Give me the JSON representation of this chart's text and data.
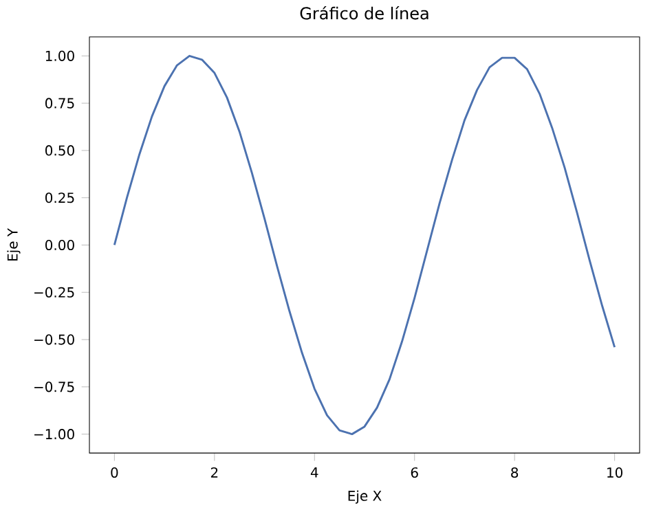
{
  "chart_data": {
    "type": "line",
    "title": "Gráfico de línea",
    "xlabel": "Eje X",
    "ylabel": "Eje Y",
    "x": [
      0,
      0.25,
      0.5,
      0.75,
      1,
      1.25,
      1.5,
      1.75,
      2,
      2.25,
      2.5,
      2.75,
      3,
      3.25,
      3.5,
      3.75,
      4,
      4.25,
      4.5,
      4.75,
      5,
      5.25,
      5.5,
      5.75,
      6,
      6.25,
      6.5,
      6.75,
      7,
      7.25,
      7.5,
      7.75,
      8,
      8.25,
      8.5,
      8.75,
      9,
      9.25,
      9.5,
      9.75,
      10
    ],
    "series": [
      {
        "color": "#4c72b0",
        "values": [
          0,
          0.25,
          0.48,
          0.68,
          0.84,
          0.95,
          1.0,
          0.98,
          0.91,
          0.78,
          0.6,
          0.38,
          0.14,
          -0.11,
          -0.35,
          -0.57,
          -0.76,
          -0.9,
          -0.98,
          -1.0,
          -0.96,
          -0.86,
          -0.71,
          -0.51,
          -0.28,
          -0.03,
          0.22,
          0.45,
          0.66,
          0.82,
          0.94,
          0.99,
          0.99,
          0.93,
          0.8,
          0.62,
          0.41,
          0.17,
          -0.08,
          -0.32,
          -0.54
        ]
      }
    ],
    "xlim": [
      -0.5,
      10.5
    ],
    "ylim": [
      -1.1,
      1.1
    ],
    "xticks": [
      0,
      2,
      4,
      6,
      8,
      10
    ],
    "yticks": [
      {
        "value": -1,
        "label": "−1.00"
      },
      {
        "value": -0.75,
        "label": "−0.75"
      },
      {
        "value": -0.5,
        "label": "−0.50"
      },
      {
        "value": -0.25,
        "label": "−0.25"
      },
      {
        "value": 0,
        "label": "0.00"
      },
      {
        "value": 0.25,
        "label": "0.25"
      },
      {
        "value": 0.5,
        "label": "0.50"
      },
      {
        "value": 0.75,
        "label": "0.75"
      },
      {
        "value": 1,
        "label": "1.00"
      }
    ],
    "grid": false
  }
}
